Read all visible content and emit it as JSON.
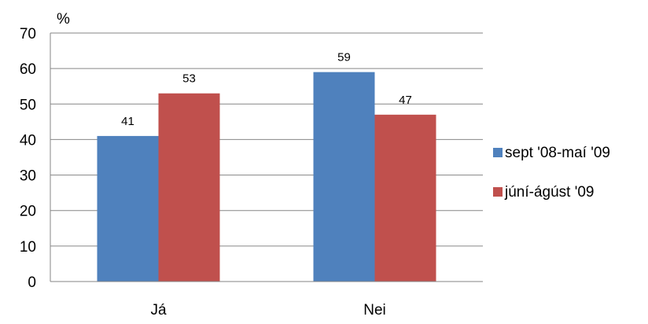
{
  "chart_data": {
    "type": "bar",
    "unit_label": "%",
    "categories": [
      "Já",
      "Nei"
    ],
    "series": [
      {
        "name": "sept '08-maí '09",
        "values": [
          41,
          59
        ],
        "color": "#4F81BD"
      },
      {
        "name": "júní-ágúst '09",
        "values": [
          53,
          47
        ],
        "color": "#C0504D"
      }
    ],
    "ylim": [
      0,
      70
    ],
    "yticks": [
      0,
      10,
      20,
      30,
      40,
      50,
      60,
      70
    ],
    "grid": true,
    "legend": "right",
    "data_labels": true
  }
}
